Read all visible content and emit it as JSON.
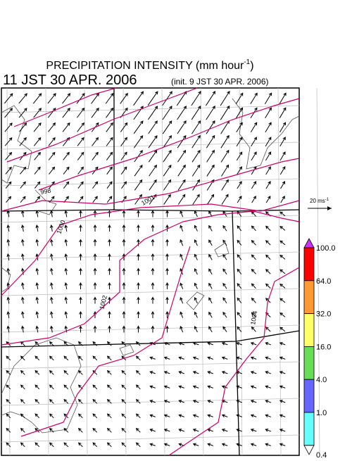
{
  "header": {
    "title_main": "PRECIPITATION INTENSITY (mm hour",
    "title_exponent": "-1",
    "title_close": ")",
    "valid_time": "11 JST 30 APR. 2006",
    "init_time": "(init. 9 JST 30 APR. 2006)"
  },
  "vector_legend": {
    "label_main": "20 ms",
    "label_exponent": "-1"
  },
  "contour_labels": [
    "998",
    "1000",
    "1001",
    "1002",
    "1004"
  ],
  "colorbar": {
    "labels": [
      "100.0",
      "64.0",
      "32.0",
      "16.0",
      "4.0",
      "1.0",
      "0.4"
    ],
    "colors": [
      "#cc33ff",
      "#ff0000",
      "#ff9933",
      "#ffff66",
      "#66dd55",
      "#6666ff",
      "#66ffff",
      "#ffffff"
    ]
  }
}
